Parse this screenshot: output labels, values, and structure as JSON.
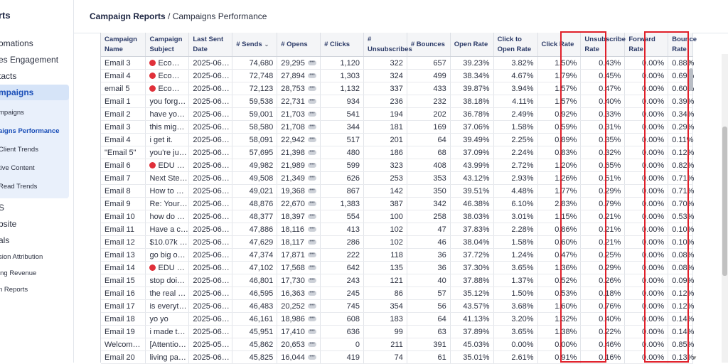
{
  "sidebar": {
    "brand": "rts",
    "items": [
      {
        "label": "omations"
      },
      {
        "label": "es Engagement"
      },
      {
        "label": "tacts"
      },
      {
        "label": "mpaigns"
      }
    ],
    "sub_items": [
      {
        "label": "mpaigns"
      },
      {
        "label": "aigns Performance"
      },
      {
        "label": "Client Trends"
      },
      {
        "label": "tive Content"
      },
      {
        "label": "Read Trends"
      }
    ],
    "items2": [
      {
        "label": "S"
      },
      {
        "label": "bsite"
      },
      {
        "label": "als"
      }
    ],
    "sub_items2": [
      {
        "label": "sion Attribution"
      },
      {
        "label": "ing Revenue"
      },
      {
        "label": "n Reports"
      }
    ]
  },
  "breadcrumb": {
    "parent": "Campaign Reports",
    "separator": " / ",
    "current": "Campaigns Performance"
  },
  "table": {
    "headers": {
      "campaign_name": "Campaign Name",
      "campaign_subject": "Campaign Subject",
      "last_sent_date": "Last Sent Date",
      "sends": "# Sends",
      "opens": "# Opens",
      "clicks": "# Clicks",
      "unsubscribes": "# Unsubscribes",
      "bounces": "# Bounces",
      "open_rate": "Open Rate",
      "click_to_open_rate": "Click to Open Rate",
      "click_rate": "Click Rate",
      "unsubscribe_rate": "Unsubscribe Rate",
      "forward_rate": "Forward Rate",
      "bounce_rate": "Bounce Rate"
    },
    "rows": [
      {
        "name": "Email 3",
        "subject": "Eco…",
        "emoji": true,
        "date": "2025-06…",
        "sends": "74,680",
        "opens": "29,295",
        "clicks": "1,120",
        "unsubs": "322",
        "bounces": "657",
        "open_rate": "39.23%",
        "cto_rate": "3.82%",
        "click_rate": "1.50%",
        "unsub_rate": "0.43%",
        "fwd_rate": "0.00%",
        "bounce_rate": "0.88%"
      },
      {
        "name": "Email 4",
        "subject": "Eco…",
        "emoji": true,
        "date": "2025-06…",
        "sends": "72,748",
        "opens": "27,894",
        "clicks": "1,303",
        "unsubs": "324",
        "bounces": "499",
        "open_rate": "38.34%",
        "cto_rate": "4.67%",
        "click_rate": "1.79%",
        "unsub_rate": "0.45%",
        "fwd_rate": "0.00%",
        "bounce_rate": "0.69%"
      },
      {
        "name": "email 5",
        "subject": "Eco…",
        "emoji": true,
        "date": "2025-06…",
        "sends": "72,123",
        "opens": "28,753",
        "clicks": "1,132",
        "unsubs": "337",
        "bounces": "433",
        "open_rate": "39.87%",
        "cto_rate": "3.94%",
        "click_rate": "1.57%",
        "unsub_rate": "0.47%",
        "fwd_rate": "0.00%",
        "bounce_rate": "0.60%"
      },
      {
        "name": "Email 1",
        "subject": "you forg…",
        "emoji": false,
        "date": "2025-06…",
        "sends": "59,538",
        "opens": "22,731",
        "clicks": "934",
        "unsubs": "236",
        "bounces": "232",
        "open_rate": "38.18%",
        "cto_rate": "4.11%",
        "click_rate": "1.57%",
        "unsub_rate": "0.40%",
        "fwd_rate": "0.00%",
        "bounce_rate": "0.39%"
      },
      {
        "name": "Email 2",
        "subject": "have yo…",
        "emoji": false,
        "date": "2025-06…",
        "sends": "59,001",
        "opens": "21,703",
        "clicks": "541",
        "unsubs": "194",
        "bounces": "202",
        "open_rate": "36.78%",
        "cto_rate": "2.49%",
        "click_rate": "0.92%",
        "unsub_rate": "0.33%",
        "fwd_rate": "0.00%",
        "bounce_rate": "0.34%"
      },
      {
        "name": "Email 3",
        "subject": "this mig…",
        "emoji": false,
        "date": "2025-06…",
        "sends": "58,580",
        "opens": "21,708",
        "clicks": "344",
        "unsubs": "181",
        "bounces": "169",
        "open_rate": "37.06%",
        "cto_rate": "1.58%",
        "click_rate": "0.59%",
        "unsub_rate": "0.31%",
        "fwd_rate": "0.00%",
        "bounce_rate": "0.29%"
      },
      {
        "name": "Email 4",
        "subject": "i get it.",
        "emoji": false,
        "date": "2025-06…",
        "sends": "58,091",
        "opens": "22,942",
        "clicks": "517",
        "unsubs": "201",
        "bounces": "64",
        "open_rate": "39.49%",
        "cto_rate": "2.25%",
        "click_rate": "0.89%",
        "unsub_rate": "0.35%",
        "fwd_rate": "0.00%",
        "bounce_rate": "0.11%"
      },
      {
        "name": "\"Email 5\"",
        "subject": "you're ju…",
        "emoji": false,
        "date": "2025-06…",
        "sends": "57,695",
        "opens": "21,398",
        "clicks": "480",
        "unsubs": "186",
        "bounces": "68",
        "open_rate": "37.09%",
        "cto_rate": "2.24%",
        "click_rate": "0.83%",
        "unsub_rate": "0.32%",
        "fwd_rate": "0.00%",
        "bounce_rate": "0.12%"
      },
      {
        "name": "Email 6",
        "subject": "EDU …",
        "emoji": true,
        "date": "2025-06…",
        "sends": "49,982",
        "opens": "21,989",
        "clicks": "599",
        "unsubs": "323",
        "bounces": "408",
        "open_rate": "43.99%",
        "cto_rate": "2.72%",
        "click_rate": "1.20%",
        "unsub_rate": "0.65%",
        "fwd_rate": "0.00%",
        "bounce_rate": "0.82%"
      },
      {
        "name": "Email 7",
        "subject": "Next Ste…",
        "emoji": false,
        "date": "2025-06…",
        "sends": "49,508",
        "opens": "21,349",
        "clicks": "626",
        "unsubs": "253",
        "bounces": "353",
        "open_rate": "43.12%",
        "cto_rate": "2.93%",
        "click_rate": "1.26%",
        "unsub_rate": "0.51%",
        "fwd_rate": "0.00%",
        "bounce_rate": "0.71%"
      },
      {
        "name": "Email 8",
        "subject": "How to …",
        "emoji": false,
        "date": "2025-06…",
        "sends": "49,021",
        "opens": "19,368",
        "clicks": "867",
        "unsubs": "142",
        "bounces": "350",
        "open_rate": "39.51%",
        "cto_rate": "4.48%",
        "click_rate": "1.77%",
        "unsub_rate": "0.29%",
        "fwd_rate": "0.00%",
        "bounce_rate": "0.71%"
      },
      {
        "name": "Email 9",
        "subject": "Re: Your…",
        "emoji": false,
        "date": "2025-06…",
        "sends": "48,876",
        "opens": "22,670",
        "clicks": "1,383",
        "unsubs": "387",
        "bounces": "342",
        "open_rate": "46.38%",
        "cto_rate": "6.10%",
        "click_rate": "2.83%",
        "unsub_rate": "0.79%",
        "fwd_rate": "0.00%",
        "bounce_rate": "0.70%"
      },
      {
        "name": "Email 10",
        "subject": "how do …",
        "emoji": false,
        "date": "2025-06…",
        "sends": "48,377",
        "opens": "18,397",
        "clicks": "554",
        "unsubs": "100",
        "bounces": "258",
        "open_rate": "38.03%",
        "cto_rate": "3.01%",
        "click_rate": "1.15%",
        "unsub_rate": "0.21%",
        "fwd_rate": "0.00%",
        "bounce_rate": "0.53%"
      },
      {
        "name": "Email 11",
        "subject": "Have a c…",
        "emoji": false,
        "date": "2025-06…",
        "sends": "47,886",
        "opens": "18,116",
        "clicks": "413",
        "unsubs": "102",
        "bounces": "47",
        "open_rate": "37.83%",
        "cto_rate": "2.28%",
        "click_rate": "0.86%",
        "unsub_rate": "0.21%",
        "fwd_rate": "0.00%",
        "bounce_rate": "0.10%"
      },
      {
        "name": "Email 12",
        "subject": "$10.07k …",
        "emoji": false,
        "date": "2025-06…",
        "sends": "47,629",
        "opens": "18,117",
        "clicks": "286",
        "unsubs": "102",
        "bounces": "46",
        "open_rate": "38.04%",
        "cto_rate": "1.58%",
        "click_rate": "0.60%",
        "unsub_rate": "0.21%",
        "fwd_rate": "0.00%",
        "bounce_rate": "0.10%"
      },
      {
        "name": "Email 13",
        "subject": "go big o…",
        "emoji": false,
        "date": "2025-06…",
        "sends": "47,374",
        "opens": "17,871",
        "clicks": "222",
        "unsubs": "118",
        "bounces": "36",
        "open_rate": "37.72%",
        "cto_rate": "1.24%",
        "click_rate": "0.47%",
        "unsub_rate": "0.25%",
        "fwd_rate": "0.00%",
        "bounce_rate": "0.08%"
      },
      {
        "name": "Email 14",
        "subject": "EDU …",
        "emoji": true,
        "date": "2025-06…",
        "sends": "47,102",
        "opens": "17,568",
        "clicks": "642",
        "unsubs": "135",
        "bounces": "36",
        "open_rate": "37.30%",
        "cto_rate": "3.65%",
        "click_rate": "1.36%",
        "unsub_rate": "0.29%",
        "fwd_rate": "0.00%",
        "bounce_rate": "0.08%"
      },
      {
        "name": "Email 15",
        "subject": "stop doi…",
        "emoji": false,
        "date": "2025-06…",
        "sends": "46,801",
        "opens": "17,730",
        "clicks": "243",
        "unsubs": "121",
        "bounces": "40",
        "open_rate": "37.88%",
        "cto_rate": "1.37%",
        "click_rate": "0.52%",
        "unsub_rate": "0.26%",
        "fwd_rate": "0.00%",
        "bounce_rate": "0.09%"
      },
      {
        "name": "Email 16",
        "subject": "the real …",
        "emoji": false,
        "date": "2025-06…",
        "sends": "46,595",
        "opens": "16,363",
        "clicks": "245",
        "unsubs": "86",
        "bounces": "57",
        "open_rate": "35.12%",
        "cto_rate": "1.50%",
        "click_rate": "0.53%",
        "unsub_rate": "0.18%",
        "fwd_rate": "0.00%",
        "bounce_rate": "0.12%"
      },
      {
        "name": "Email 17",
        "subject": "is everyt…",
        "emoji": false,
        "date": "2025-06…",
        "sends": "46,483",
        "opens": "20,252",
        "clicks": "745",
        "unsubs": "354",
        "bounces": "56",
        "open_rate": "43.57%",
        "cto_rate": "3.68%",
        "click_rate": "1.60%",
        "unsub_rate": "0.76%",
        "fwd_rate": "0.00%",
        "bounce_rate": "0.12%"
      },
      {
        "name": "Email 18",
        "subject": "yo yo",
        "emoji": false,
        "date": "2025-06…",
        "sends": "46,161",
        "opens": "18,986",
        "clicks": "608",
        "unsubs": "183",
        "bounces": "64",
        "open_rate": "41.13%",
        "cto_rate": "3.20%",
        "click_rate": "1.32%",
        "unsub_rate": "0.40%",
        "fwd_rate": "0.00%",
        "bounce_rate": "0.14%"
      },
      {
        "name": "Email 19",
        "subject": "i made t…",
        "emoji": false,
        "date": "2025-06…",
        "sends": "45,951",
        "opens": "17,410",
        "clicks": "636",
        "unsubs": "99",
        "bounces": "63",
        "open_rate": "37.89%",
        "cto_rate": "3.65%",
        "click_rate": "1.38%",
        "unsub_rate": "0.22%",
        "fwd_rate": "0.00%",
        "bounce_rate": "0.14%"
      },
      {
        "name": "Welcom…",
        "subject": "[Attentio…",
        "emoji": false,
        "date": "2025-05…",
        "sends": "45,862",
        "opens": "20,653",
        "clicks": "0",
        "unsubs": "211",
        "bounces": "391",
        "open_rate": "45.03%",
        "cto_rate": "0.00%",
        "click_rate": "0.00%",
        "unsub_rate": "0.46%",
        "fwd_rate": "0.00%",
        "bounce_rate": "0.85%"
      },
      {
        "name": "Email 20",
        "subject": "living pa…",
        "emoji": false,
        "date": "2025-06…",
        "sends": "45,825",
        "opens": "16,044",
        "clicks": "419",
        "unsubs": "74",
        "bounces": "61",
        "open_rate": "35.01%",
        "cto_rate": "2.61%",
        "click_rate": "0.91%",
        "unsub_rate": "0.16%",
        "fwd_rate": "0.00%",
        "bounce_rate": "0.13%"
      }
    ]
  },
  "colors": {
    "highlight": "#e0202a",
    "header_text": "#2b3a67",
    "emoji": "#e0303a"
  },
  "icons": {
    "sort": "sort-desc-icon",
    "more": "more-dots-icon",
    "emoji": "red-circle-emoji-icon"
  }
}
